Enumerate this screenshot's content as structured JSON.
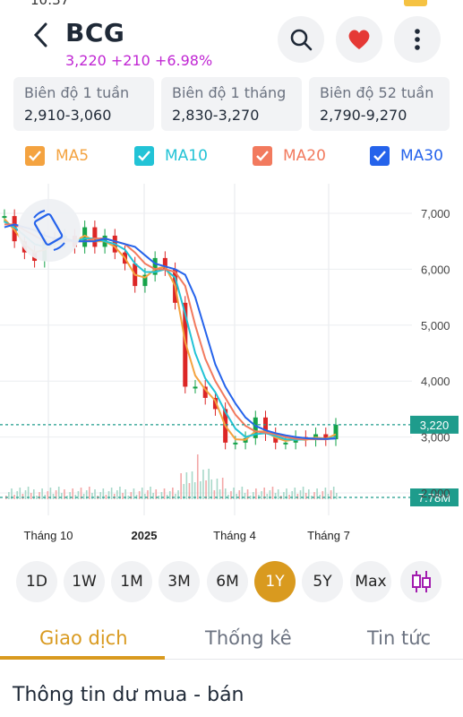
{
  "status": {
    "time": "10:37"
  },
  "header": {
    "symbol": "BCG",
    "price_change": "3,220 +210 +6.98%"
  },
  "ranges": [
    {
      "label": "Biên độ 1 tuần",
      "value": "2,910-3,060"
    },
    {
      "label": "Biên độ 1 tháng",
      "value": "2,830-3,270"
    },
    {
      "label": "Biên độ 52 tuần",
      "value": "2,790-9,270"
    }
  ],
  "moving_averages": [
    {
      "label": "MA5",
      "color": "#f4a340",
      "checked": true
    },
    {
      "label": "MA10",
      "color": "#22c3d6",
      "checked": true
    },
    {
      "label": "MA20",
      "color": "#f27a5e",
      "checked": true
    },
    {
      "label": "MA30",
      "color": "#2563eb",
      "checked": true
    }
  ],
  "chart": {
    "price_badge": "3,220",
    "volume_badge": "7.78M",
    "y_ticks": [
      "7,000",
      "6,000",
      "5,000",
      "4,000",
      "3,000",
      "2,000"
    ],
    "x_ticks": [
      "Tháng 10",
      "2025",
      "Tháng 4",
      "Tháng 7"
    ],
    "accent": "#1e9c8c"
  },
  "chart_data": {
    "type": "line",
    "title": "",
    "x_labels": [
      "Tháng 10",
      "2025",
      "Tháng 4",
      "Tháng 7"
    ],
    "ylim": [
      1600,
      7400
    ],
    "y_ticks": [
      2000,
      3000,
      4000,
      5000,
      6000,
      7000
    ],
    "series": [
      {
        "name": "Price",
        "values": [
          6950,
          6500,
          6300,
          6150,
          6550,
          6500,
          6600,
          6400,
          6750,
          6400,
          6600,
          6300,
          6100,
          5700,
          5900,
          6200,
          6000,
          5400,
          3900,
          3900,
          3700,
          3500,
          2900,
          2900,
          2980,
          3350,
          3050,
          2900,
          2900,
          3000,
          2950,
          3050,
          2960,
          3220
        ]
      },
      {
        "name": "MA5",
        "values": [
          6900,
          6700,
          6450,
          6300,
          6350,
          6450,
          6550,
          6500,
          6600,
          6500,
          6500,
          6400,
          6200,
          5900,
          5850,
          6000,
          6050,
          5700,
          4700,
          4100,
          3850,
          3650,
          3200,
          2960,
          2950,
          3100,
          3100,
          2990,
          2930,
          2960,
          2950,
          2990,
          2970,
          3050
        ]
      },
      {
        "name": "MA10",
        "values": [
          6850,
          6750,
          6600,
          6450,
          6400,
          6450,
          6500,
          6500,
          6550,
          6550,
          6500,
          6450,
          6350,
          6100,
          5950,
          5950,
          6000,
          5850,
          5200,
          4500,
          4050,
          3800,
          3450,
          3150,
          3000,
          3050,
          3070,
          3020,
          2960,
          2950,
          2960,
          2970,
          2960,
          3000
        ]
      },
      {
        "name": "MA20",
        "values": [
          6800,
          6800,
          6700,
          6600,
          6500,
          6500,
          6500,
          6500,
          6500,
          6550,
          6550,
          6500,
          6450,
          6300,
          6100,
          6000,
          6000,
          5950,
          5700,
          5000,
          4400,
          4000,
          3700,
          3400,
          3200,
          3100,
          3080,
          3050,
          3000,
          2970,
          2960,
          2960,
          2960,
          2980
        ]
      },
      {
        "name": "MA30",
        "values": [
          6750,
          6800,
          6750,
          6700,
          6600,
          6550,
          6550,
          6500,
          6500,
          6500,
          6550,
          6500,
          6450,
          6400,
          6250,
          6100,
          6050,
          6000,
          5900,
          5500,
          4900,
          4300,
          3900,
          3600,
          3350,
          3200,
          3120,
          3070,
          3030,
          3000,
          2980,
          2970,
          2965,
          2975
        ]
      }
    ],
    "volume_note": "7.78M",
    "last_price": 3220,
    "grid": true
  },
  "timeframes": [
    "1D",
    "1W",
    "1M",
    "3M",
    "6M",
    "1Y",
    "5Y",
    "Max"
  ],
  "active_timeframe": "1Y",
  "tabs": [
    "Giao dịch",
    "Thống kê",
    "Tin tức"
  ],
  "section_title": "Thông tin dư mua - bán"
}
